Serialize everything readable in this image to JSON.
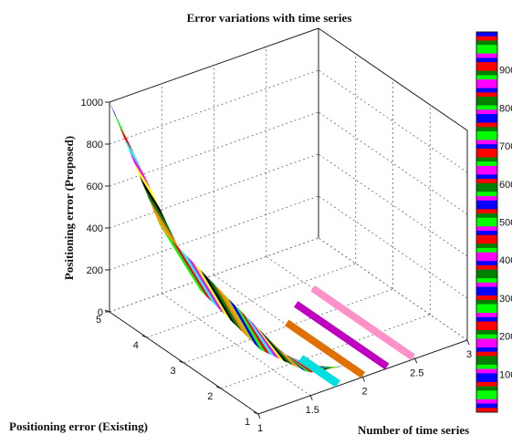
{
  "chart_data": {
    "type": "surface3d",
    "title": "Error variations with time series",
    "xlabel": "Number of time series",
    "ylabel": "Positioning error (Existing)",
    "zlabel": "Positioning error (Proposed)",
    "xlim": [
      1,
      3
    ],
    "ylim": [
      1,
      5
    ],
    "zlim": [
      0,
      1000
    ],
    "x_ticks": [
      "1",
      "1.5",
      "2",
      "2.5",
      "3"
    ],
    "y_ticks": [
      "1",
      "2",
      "3",
      "4",
      "5"
    ],
    "z_ticks": [
      "0",
      "200",
      "400",
      "600",
      "800",
      "1000"
    ],
    "colorbar_ticks": [
      "100",
      "200",
      "300",
      "400",
      "500",
      "600",
      "700",
      "800",
      "900"
    ],
    "grid": true,
    "series": [
      {
        "x": 1.0,
        "y": [
          5,
          4,
          3,
          2,
          1
        ],
        "z": [
          1000,
          640,
          360,
          160,
          40
        ]
      },
      {
        "x": 1.5,
        "y": [
          3,
          2,
          1
        ],
        "z": [
          250,
          120,
          20
        ]
      },
      {
        "x": 1.75,
        "y": [
          2,
          1
        ],
        "z": [
          0,
          0
        ]
      },
      {
        "x": 2.0,
        "y": [
          1.6,
          1
        ],
        "z": [
          0,
          0
        ]
      },
      {
        "x": 2.25,
        "y": [
          1.6,
          1
        ],
        "z": [
          0,
          0
        ]
      },
      {
        "x": 2.5,
        "y": [
          1.6,
          1
        ],
        "z": [
          0,
          0
        ]
      }
    ],
    "colors": [
      "#0000ff",
      "#00ff00",
      "#ff0000",
      "#00ffff",
      "#ff00ff",
      "#ffff00",
      "#000000",
      "#008000",
      "#ff8000",
      "#c0c000"
    ]
  }
}
